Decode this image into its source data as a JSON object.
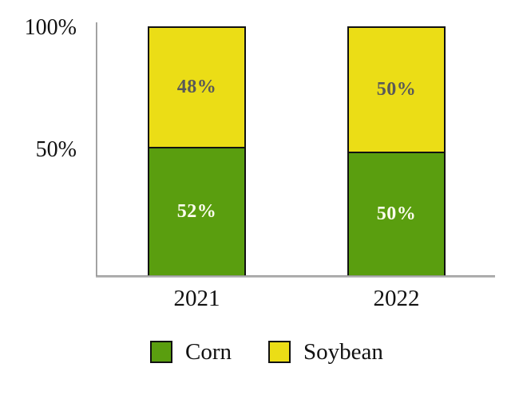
{
  "chart_data": {
    "type": "bar",
    "stacked": true,
    "title": "",
    "categories": [
      "2021",
      "2022"
    ],
    "series": [
      {
        "name": "Corn",
        "color": "#5A9E0F",
        "values": [
          52,
          50
        ],
        "data_labels": [
          "52%",
          "50%"
        ],
        "label_color": "#FCFCEE"
      },
      {
        "name": "Soybean",
        "color": "#EBDD16",
        "values": [
          48,
          50
        ],
        "data_labels": [
          "48%",
          "50%"
        ],
        "label_color": "#595959"
      }
    ],
    "ylim": [
      0,
      100
    ],
    "yticks": [
      {
        "value": 100,
        "label": "100%"
      },
      {
        "value": 50,
        "label": "50%"
      }
    ],
    "grid": false,
    "legend_position": "bottom",
    "axis_color": "#9a9a9a",
    "bar_border_color": "#111111"
  }
}
